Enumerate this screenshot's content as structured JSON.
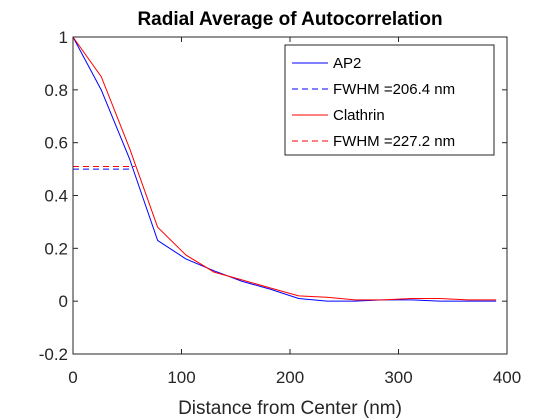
{
  "chart_data": {
    "type": "line",
    "title": "Radial Average of Autocorrelation",
    "xlabel": "Distance from Center (nm)",
    "ylabel": "",
    "xlim": [
      0,
      400
    ],
    "ylim": [
      -0.2,
      1
    ],
    "xticks": [
      0,
      100,
      200,
      300,
      400
    ],
    "xtick_labels": [
      "0",
      "100",
      "200",
      "300",
      "400"
    ],
    "yticks": [
      -0.2,
      0,
      0.2,
      0.4,
      0.6,
      0.8,
      1
    ],
    "ytick_labels": [
      "-0.2",
      "0",
      "0.2",
      "0.4",
      "0.6",
      "0.8",
      "1"
    ],
    "grid": false,
    "legend_position": "top-right",
    "series": [
      {
        "name": "AP2",
        "color": "#0000ff",
        "style": "solid",
        "x": [
          0,
          26,
          52,
          78,
          104,
          130,
          156,
          182,
          208,
          234,
          260,
          286,
          312,
          338,
          364,
          390
        ],
        "y": [
          1.0,
          0.8,
          0.54,
          0.23,
          0.16,
          0.115,
          0.075,
          0.045,
          0.01,
          0.0,
          0.0,
          0.005,
          0.005,
          0.0,
          0.0,
          0.0
        ]
      },
      {
        "name": "FWHM =206.4 nm",
        "color": "#0000ff",
        "style": "dashed",
        "x": [
          0,
          52
        ],
        "y": [
          0.5,
          0.5
        ]
      },
      {
        "name": "Clathrin",
        "color": "#ff0000",
        "style": "solid",
        "x": [
          0,
          26,
          52,
          78,
          104,
          130,
          156,
          182,
          208,
          234,
          260,
          286,
          312,
          338,
          364,
          390
        ],
        "y": [
          1.0,
          0.85,
          0.58,
          0.28,
          0.175,
          0.11,
          0.08,
          0.05,
          0.02,
          0.015,
          0.005,
          0.005,
          0.01,
          0.01,
          0.005,
          0.005
        ]
      },
      {
        "name": "FWHM =227.2 nm",
        "color": "#ff0000",
        "style": "dashed",
        "x": [
          0,
          57
        ],
        "y": [
          0.51,
          0.51
        ]
      }
    ]
  }
}
